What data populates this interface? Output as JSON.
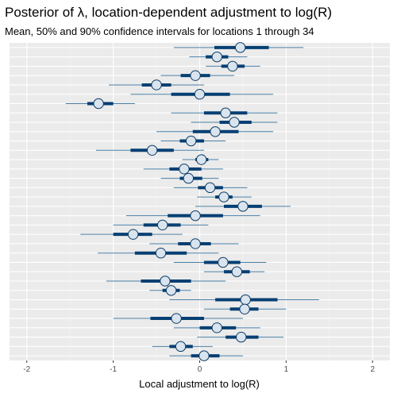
{
  "chart_data": {
    "type": "interval",
    "title": "Posterior of λ, location-dependent adjustment to log(R)",
    "subtitle": "Mean, 50% and 90% confidence intervals for locations 1 through 34",
    "xlabel": "Local adjustment to log(R)",
    "ylabel": "",
    "xlim": [
      -2.2,
      2.2
    ],
    "x_ticks": [
      -2,
      -1,
      0,
      1,
      2
    ],
    "grid": true,
    "background": "#ebebeb",
    "colors": {
      "ci50": "#053f73",
      "ci90": "#4a7fa7",
      "mean_fill": "#d9e4ef",
      "mean_stroke": "#0b3a63"
    },
    "series": [
      {
        "location": 1,
        "mean": 0.47,
        "ci50": [
          0.17,
          0.8
        ],
        "ci90": [
          -0.3,
          1.2
        ]
      },
      {
        "location": 2,
        "mean": 0.2,
        "ci50": [
          0.07,
          0.33
        ],
        "ci90": [
          -0.12,
          0.55
        ]
      },
      {
        "location": 3,
        "mean": 0.38,
        "ci50": [
          0.25,
          0.52
        ],
        "ci90": [
          0.07,
          0.7
        ]
      },
      {
        "location": 4,
        "mean": -0.05,
        "ci50": [
          -0.22,
          0.12
        ],
        "ci90": [
          -0.45,
          0.4
        ]
      },
      {
        "location": 5,
        "mean": -0.5,
        "ci50": [
          -0.67,
          -0.33
        ],
        "ci90": [
          -1.05,
          0.05
        ]
      },
      {
        "location": 6,
        "mean": 0.0,
        "ci50": [
          -0.33,
          0.35
        ],
        "ci90": [
          -0.8,
          0.85
        ]
      },
      {
        "location": 7,
        "mean": -1.17,
        "ci50": [
          -1.3,
          -1.0
        ],
        "ci90": [
          -1.55,
          -0.75
        ]
      },
      {
        "location": 8,
        "mean": 0.3,
        "ci50": [
          0.05,
          0.55
        ],
        "ci90": [
          -0.33,
          0.9
        ]
      },
      {
        "location": 9,
        "mean": 0.4,
        "ci50": [
          0.23,
          0.6
        ],
        "ci90": [
          -0.1,
          0.9
        ]
      },
      {
        "location": 10,
        "mean": 0.18,
        "ci50": [
          -0.08,
          0.45
        ],
        "ci90": [
          -0.5,
          0.85
        ]
      },
      {
        "location": 11,
        "mean": -0.1,
        "ci50": [
          -0.23,
          0.05
        ],
        "ci90": [
          -0.45,
          0.3
        ]
      },
      {
        "location": 12,
        "mean": -0.55,
        "ci50": [
          -0.8,
          -0.3
        ],
        "ci90": [
          -1.2,
          0.05
        ]
      },
      {
        "location": 13,
        "mean": 0.02,
        "ci50": [
          -0.05,
          0.1
        ],
        "ci90": [
          -0.2,
          0.22
        ]
      },
      {
        "location": 14,
        "mean": -0.18,
        "ci50": [
          -0.35,
          0.02
        ],
        "ci90": [
          -0.65,
          0.27
        ]
      },
      {
        "location": 15,
        "mean": -0.13,
        "ci50": [
          -0.23,
          0.03
        ],
        "ci90": [
          -0.45,
          0.22
        ]
      },
      {
        "location": 16,
        "mean": 0.12,
        "ci50": [
          -0.02,
          0.27
        ],
        "ci90": [
          -0.3,
          0.55
        ]
      },
      {
        "location": 17,
        "mean": 0.28,
        "ci50": [
          0.18,
          0.38
        ],
        "ci90": [
          -0.03,
          0.6
        ]
      },
      {
        "location": 18,
        "mean": 0.5,
        "ci50": [
          0.28,
          0.72
        ],
        "ci90": [
          -0.05,
          1.05
        ]
      },
      {
        "location": 19,
        "mean": -0.05,
        "ci50": [
          -0.37,
          0.27
        ],
        "ci90": [
          -0.85,
          0.7
        ]
      },
      {
        "location": 20,
        "mean": -0.43,
        "ci50": [
          -0.65,
          -0.22
        ],
        "ci90": [
          -1.0,
          0.1
        ]
      },
      {
        "location": 21,
        "mean": -0.77,
        "ci50": [
          -1.0,
          -0.55
        ],
        "ci90": [
          -1.38,
          -0.2
        ]
      },
      {
        "location": 22,
        "mean": -0.05,
        "ci50": [
          -0.25,
          0.13
        ],
        "ci90": [
          -0.58,
          0.45
        ]
      },
      {
        "location": 23,
        "mean": -0.45,
        "ci50": [
          -0.75,
          -0.15
        ],
        "ci90": [
          -1.18,
          0.22
        ]
      },
      {
        "location": 24,
        "mean": 0.27,
        "ci50": [
          0.05,
          0.47
        ],
        "ci90": [
          -0.3,
          0.77
        ]
      },
      {
        "location": 25,
        "mean": 0.43,
        "ci50": [
          0.28,
          0.58
        ],
        "ci90": [
          0.05,
          0.75
        ]
      },
      {
        "location": 26,
        "mean": -0.4,
        "ci50": [
          -0.68,
          -0.1
        ],
        "ci90": [
          -1.08,
          0.3
        ]
      },
      {
        "location": 27,
        "mean": -0.33,
        "ci50": [
          -0.43,
          -0.23
        ],
        "ci90": [
          -0.58,
          -0.1
        ]
      },
      {
        "location": 28,
        "mean": 0.53,
        "ci50": [
          0.18,
          0.9
        ],
        "ci90": [
          -0.35,
          1.38
        ]
      },
      {
        "location": 29,
        "mean": 0.52,
        "ci50": [
          0.35,
          0.68
        ],
        "ci90": [
          0.05,
          1.0
        ]
      },
      {
        "location": 30,
        "mean": -0.27,
        "ci50": [
          -0.57,
          0.05
        ],
        "ci90": [
          -1.0,
          0.5
        ]
      },
      {
        "location": 31,
        "mean": 0.2,
        "ci50": [
          0.0,
          0.42
        ],
        "ci90": [
          -0.3,
          0.7
        ]
      },
      {
        "location": 32,
        "mean": 0.48,
        "ci50": [
          0.3,
          0.68
        ],
        "ci90": [
          -0.03,
          0.97
        ]
      },
      {
        "location": 33,
        "mean": -0.22,
        "ci50": [
          -0.35,
          -0.08
        ],
        "ci90": [
          -0.55,
          0.15
        ]
      },
      {
        "location": 34,
        "mean": 0.05,
        "ci50": [
          -0.1,
          0.23
        ],
        "ci90": [
          -0.35,
          0.5
        ]
      }
    ]
  }
}
